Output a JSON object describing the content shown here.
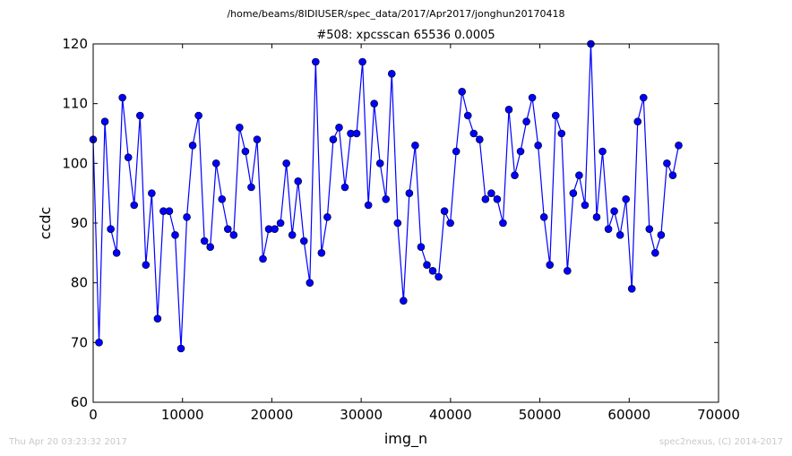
{
  "header": {
    "path": "/home/beams/8IDIUSER/spec_data/2017/Apr2017/jonghun20170418"
  },
  "footer": {
    "timestamp": "Thu Apr 20 03:23:32 2017",
    "credit": "spec2nexus, (C) 2014-2017"
  },
  "chart_data": {
    "type": "line",
    "title": "#508: xpcsscan 65536 0.0005",
    "xlabel": "img_n",
    "ylabel": "ccdc",
    "xlim": [
      0,
      70000
    ],
    "ylim": [
      60,
      120
    ],
    "xticks": [
      0,
      10000,
      20000,
      30000,
      40000,
      50000,
      60000,
      70000
    ],
    "yticks": [
      60,
      70,
      80,
      90,
      100,
      110,
      120
    ],
    "grid": false,
    "color": "#0000ff",
    "markers": true,
    "series": [
      {
        "x": [
          0,
          655,
          1311,
          1966,
          2621,
          3277,
          3932,
          4588,
          5243,
          5898,
          6554,
          7209,
          7864,
          8520,
          9175,
          9830,
          10486,
          11141,
          11796,
          12452,
          13107,
          13763,
          14418,
          15073,
          15729,
          16384,
          17039,
          17695,
          18350,
          19005,
          19661,
          20316,
          20972,
          21627,
          22282,
          22938,
          23593,
          24248,
          24904,
          25559,
          26214,
          26870,
          27525,
          28180,
          28836,
          29491,
          30147,
          30802,
          31457,
          32113,
          32768,
          33423,
          34079,
          34734,
          35389,
          36045,
          36700,
          37356,
          38011,
          38666,
          39322,
          39977,
          40632,
          41288,
          41943,
          42598,
          43254,
          43909,
          44564,
          45220,
          45875,
          46531,
          47186,
          47841,
          48497,
          49152,
          49807,
          50463,
          51118,
          51773,
          52429,
          53084,
          53740,
          54395,
          55050,
          55706,
          56361,
          57016,
          57672,
          58327,
          58982,
          59638,
          60293,
          60948,
          61604,
          62259,
          62915,
          63570,
          64225,
          64881,
          65536
        ],
        "y": [
          104,
          70,
          107,
          89,
          85,
          111,
          101,
          93,
          108,
          83,
          95,
          74,
          92,
          92,
          88,
          69,
          91,
          103,
          108,
          87,
          86,
          100,
          94,
          89,
          88,
          106,
          102,
          96,
          104,
          84,
          89,
          89,
          90,
          100,
          88,
          97,
          87,
          80,
          117,
          85,
          91,
          104,
          106,
          96,
          105,
          105,
          117,
          93,
          110,
          100,
          94,
          115,
          90,
          77,
          95,
          103,
          86,
          83,
          82,
          81,
          92,
          90,
          102,
          112,
          108,
          105,
          104,
          94,
          95,
          94,
          90,
          109,
          98,
          102,
          107,
          111,
          103,
          91,
          83,
          108,
          105,
          82,
          95,
          98,
          93,
          120,
          91,
          102,
          89,
          92,
          88,
          94,
          79,
          107,
          111,
          89,
          85,
          88,
          100,
          98,
          103
        ]
      }
    ]
  }
}
